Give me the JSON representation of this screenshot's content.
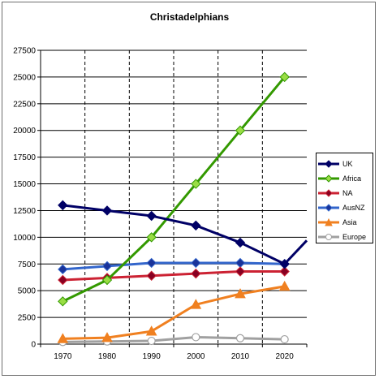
{
  "chart_data": {
    "type": "line",
    "title": "Christadelphians",
    "xlabel": "",
    "ylabel": "",
    "categories": [
      "1970",
      "1980",
      "1990",
      "2000",
      "2010",
      "2020"
    ],
    "x_tick_labels": [
      "1970",
      "1980",
      "1990",
      "2000",
      "2010",
      "2020"
    ],
    "y_tick_labels": [
      "0",
      "2500",
      "5000",
      "7500",
      "10000",
      "12500",
      "15000",
      "17500",
      "20000",
      "22500",
      "25000",
      "27500"
    ],
    "ylim": [
      0,
      27500
    ],
    "x_range": [
      1965,
      2025
    ],
    "grid": {
      "horizontal": true,
      "vertical": true,
      "vertical_style": "dashed"
    },
    "legend_position": "right",
    "series": [
      {
        "name": "UK",
        "color": "#000066",
        "marker": "diamond",
        "x": [
          1970,
          1980,
          1990,
          2000,
          2010,
          2020,
          2025
        ],
        "values": [
          13000,
          12500,
          12000,
          11100,
          9500,
          7500,
          9700
        ]
      },
      {
        "name": "Africa",
        "color": "#339900",
        "marker": "diamond",
        "marker_fill": "#99dd44",
        "x": [
          1970,
          1980,
          1990,
          2000,
          2010,
          2020
        ],
        "values": [
          4000,
          6000,
          10000,
          15000,
          20000,
          25000
        ]
      },
      {
        "name": "NA",
        "color": "#cc2233",
        "marker": "diamond",
        "marker_fill": "#880022",
        "x": [
          1970,
          1980,
          1990,
          2000,
          2010,
          2020
        ],
        "values": [
          6000,
          6200,
          6400,
          6600,
          6800,
          6800
        ]
      },
      {
        "name": "AusNZ",
        "color": "#3366cc",
        "marker": "diamond",
        "marker_fill": "#1a3399",
        "x": [
          1970,
          1980,
          1990,
          2000,
          2010,
          2020
        ],
        "values": [
          7000,
          7300,
          7600,
          7600,
          7600,
          7500
        ]
      },
      {
        "name": "Asia",
        "color": "#f08020",
        "marker": "triangle",
        "x": [
          1970,
          1980,
          1990,
          2000,
          2010,
          2020
        ],
        "values": [
          500,
          600,
          1200,
          3700,
          4700,
          5400
        ]
      },
      {
        "name": "Europe",
        "color": "#a0a0a0",
        "marker": "circle",
        "marker_fill": "#ffffff",
        "x": [
          1970,
          1980,
          1990,
          2000,
          2010,
          2020
        ],
        "values": [
          200,
          250,
          300,
          650,
          550,
          450
        ]
      }
    ]
  }
}
